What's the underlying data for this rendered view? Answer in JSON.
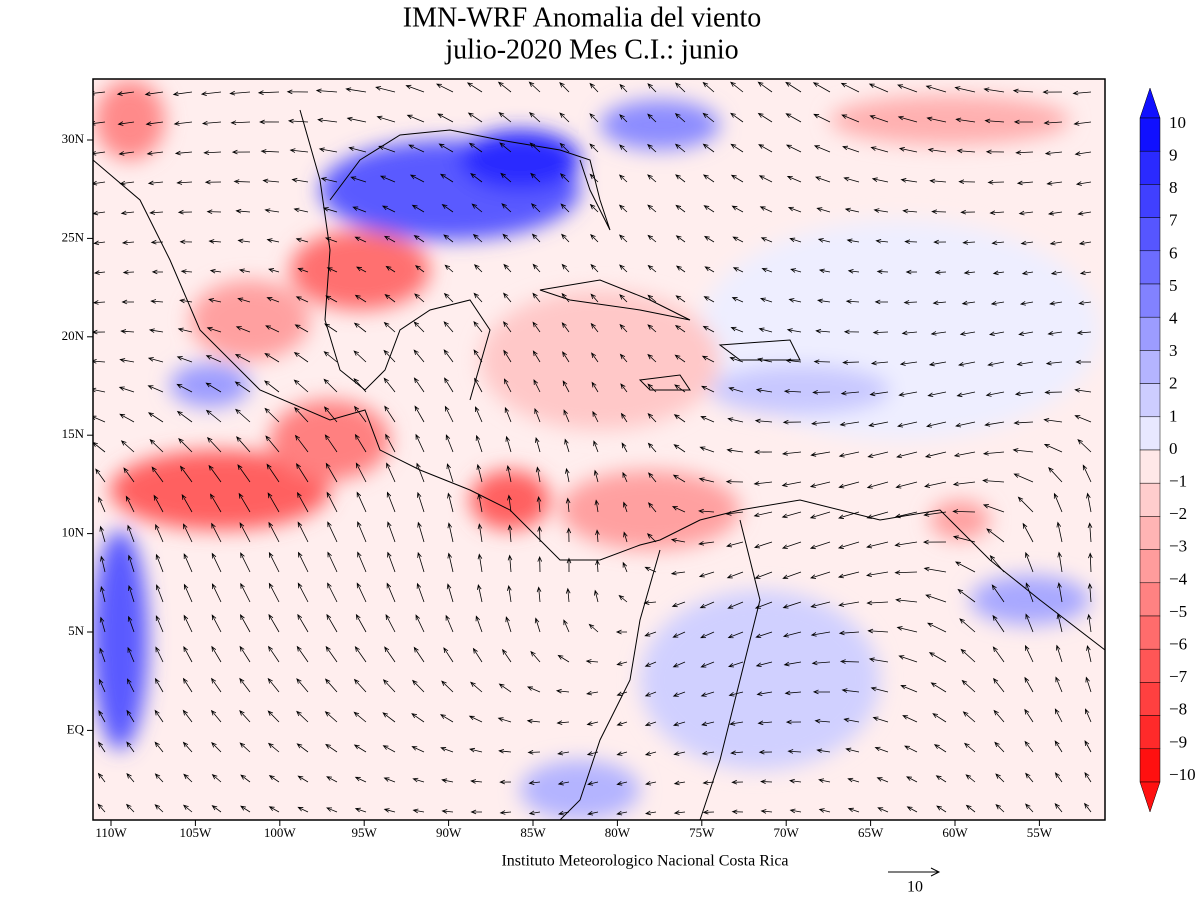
{
  "header": {
    "title": [
      "IMN-WRF Anomalia del viento",
      "julio-2020 Mes C.I.: junio"
    ]
  },
  "map": {
    "lon_labels": [
      "110W",
      "105W",
      "100W",
      "95W",
      "90W",
      "85W",
      "80W",
      "75W",
      "70W",
      "65W",
      "60W",
      "55W"
    ],
    "lat_labels": [
      "30N",
      "25N",
      "20N",
      "15N",
      "10N",
      "5N",
      "EQ"
    ]
  },
  "colorbar": {
    "labels": [
      "10",
      "9",
      "8",
      "7",
      "6",
      "5",
      "4",
      "3",
      "2",
      "1",
      "0",
      "−1",
      "−2",
      "−3",
      "−4",
      "−5",
      "−6",
      "−7",
      "−8",
      "−9",
      "−10"
    ],
    "colors": [
      "#1010ff",
      "#2a2aff",
      "#4040ff",
      "#5656ff",
      "#6c6cff",
      "#8282ff",
      "#9c9cff",
      "#b4b4ff",
      "#cdcdff",
      "#e8e8ff",
      "#ffe8e8",
      "#ffcdcd",
      "#ffb4b4",
      "#ff9c9c",
      "#ff8282",
      "#ff6c6c",
      "#ff5656",
      "#ff4040",
      "#ff2a2a",
      "#ff1010"
    ]
  },
  "footer": {
    "credit": "Instituto Meteorologico Nacional Costa Rica",
    "reference_vector": "10"
  }
}
